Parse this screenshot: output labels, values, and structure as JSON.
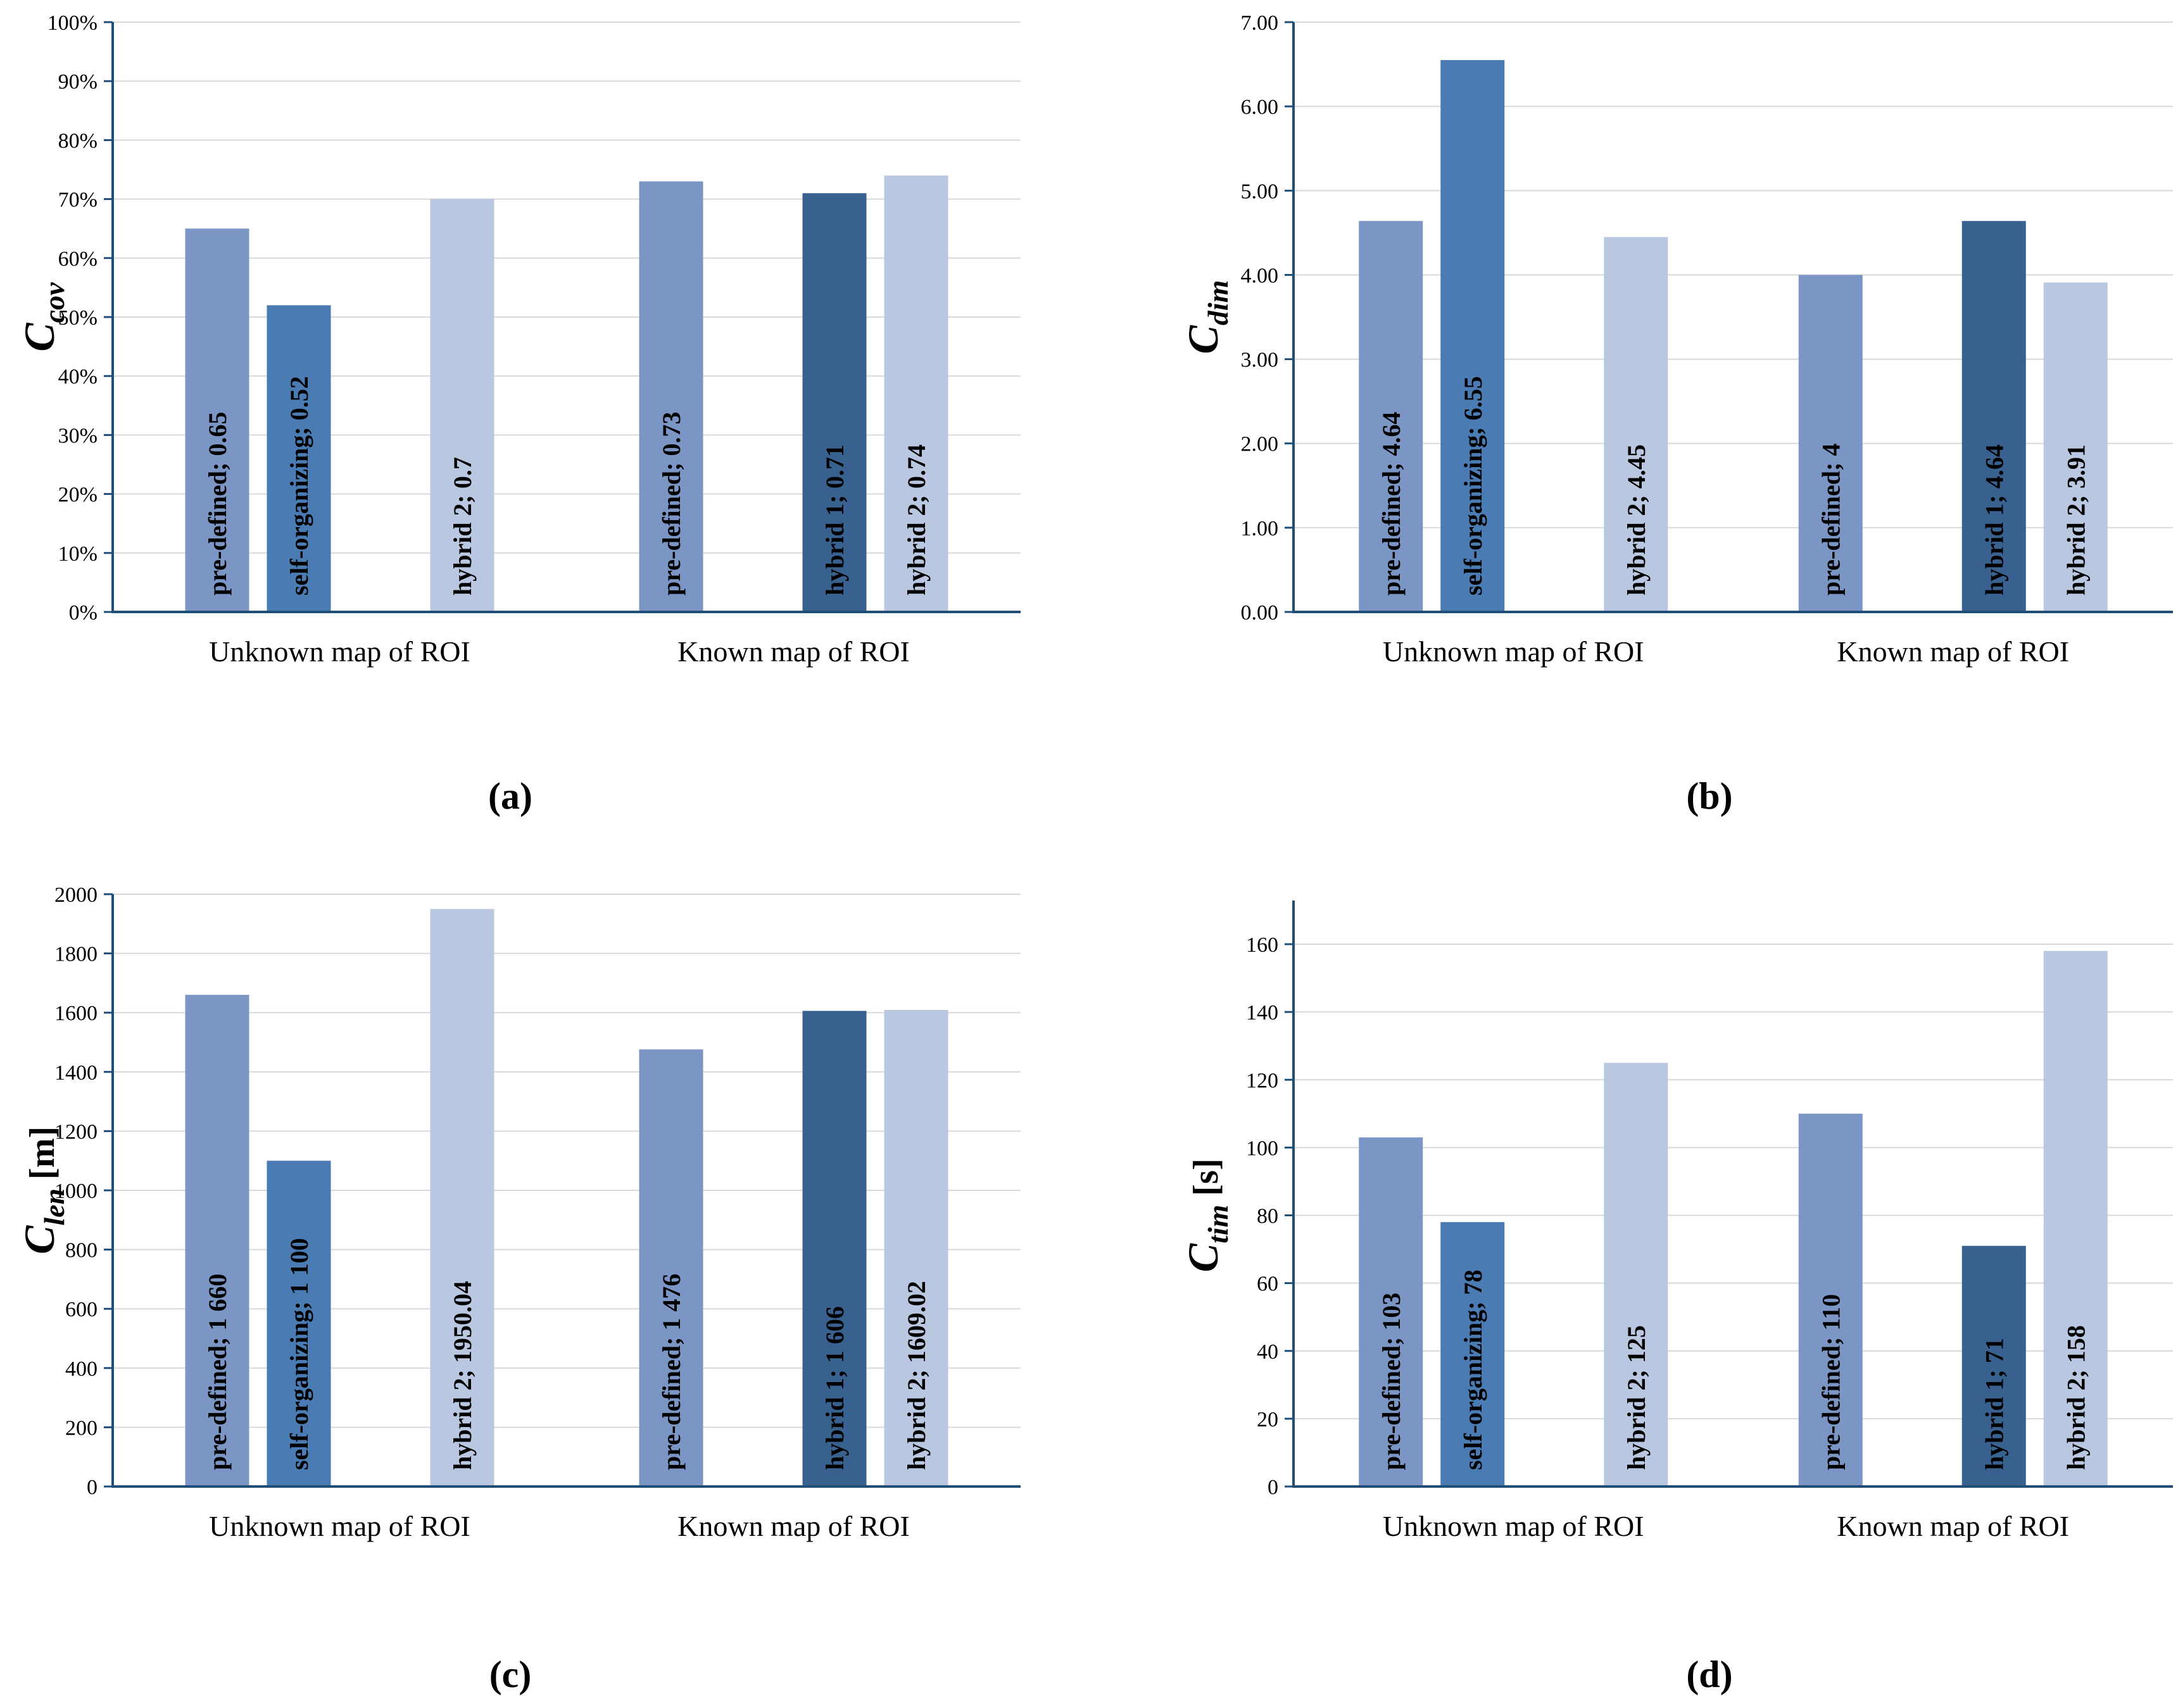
{
  "figure": {
    "background": "#ffffff",
    "axis_color": "#1F4E79",
    "gridline_color": "#D9D9D9",
    "text_color": "#000000",
    "series_colors": {
      "pre-defined": "#7B96C4",
      "self-organizing": "#4A7BB3",
      "hybrid 1": "#39618F",
      "hybrid 2": "#BAC7E0"
    }
  },
  "chart_data": [
    {
      "id": "a",
      "type": "bar",
      "caption": "(a)",
      "ylabel": {
        "symbol": "C",
        "subscript": "cov",
        "unit": ""
      },
      "y_axis": {
        "min": 0,
        "max": 1,
        "format": "percent",
        "grid": true,
        "legend": "none"
      },
      "ticks": [
        {
          "v": 0,
          "label": "0%"
        },
        {
          "v": 0.1,
          "label": "10%"
        },
        {
          "v": 0.2,
          "label": "20%"
        },
        {
          "v": 0.3,
          "label": "30%"
        },
        {
          "v": 0.4,
          "label": "40%"
        },
        {
          "v": 0.5,
          "label": "50%"
        },
        {
          "v": 0.6,
          "label": "60%"
        },
        {
          "v": 0.7,
          "label": "70%"
        },
        {
          "v": 0.8,
          "label": "80%"
        },
        {
          "v": 0.9,
          "label": "90%"
        },
        {
          "v": 1,
          "label": "100%"
        }
      ],
      "categories": [
        "Unknown map of ROI",
        "Known map of ROI"
      ],
      "series_order": [
        "pre-defined",
        "self-organizing",
        "hybrid 1",
        "hybrid 2"
      ],
      "groups": [
        {
          "category": "Unknown map of ROI",
          "bars": [
            {
              "series": "pre-defined",
              "value": 0.65,
              "label": "pre-defined; 0.65"
            },
            {
              "series": "self-organizing",
              "value": 0.52,
              "label": "self-organizing; 0.52"
            },
            null,
            {
              "series": "hybrid 2",
              "value": 0.7,
              "label": "hybrid 2; 0.7"
            }
          ]
        },
        {
          "category": "Known map of ROI",
          "bars": [
            {
              "series": "pre-defined",
              "value": 0.73,
              "label": "pre-defined; 0.73"
            },
            null,
            {
              "series": "hybrid 1",
              "value": 0.71,
              "label": "hybrid 1; 0.71"
            },
            {
              "series": "hybrid 2",
              "value": 0.74,
              "label": "hybrid 2; 0.74"
            }
          ]
        }
      ]
    },
    {
      "id": "b",
      "type": "bar",
      "caption": "(b)",
      "ylabel": {
        "symbol": "C",
        "subscript": "dim",
        "unit": ""
      },
      "y_axis": {
        "min": 0,
        "max": 7,
        "format": "2dp",
        "grid": true,
        "legend": "none"
      },
      "ticks": [
        {
          "v": 0,
          "label": "0.00"
        },
        {
          "v": 1,
          "label": "1.00"
        },
        {
          "v": 2,
          "label": "2.00"
        },
        {
          "v": 3,
          "label": "3.00"
        },
        {
          "v": 4,
          "label": "4.00"
        },
        {
          "v": 5,
          "label": "5.00"
        },
        {
          "v": 6,
          "label": "6.00"
        },
        {
          "v": 7,
          "label": "7.00"
        }
      ],
      "categories": [
        "Unknown map of ROI",
        "Known map of ROI"
      ],
      "series_order": [
        "pre-defined",
        "self-organizing",
        "hybrid 1",
        "hybrid 2"
      ],
      "groups": [
        {
          "category": "Unknown map of ROI",
          "bars": [
            {
              "series": "pre-defined",
              "value": 4.64,
              "label": "pre-defined; 4.64"
            },
            {
              "series": "self-organizing",
              "value": 6.55,
              "label": "self-organizing; 6.55"
            },
            null,
            {
              "series": "hybrid 2",
              "value": 4.45,
              "label": "hybrid 2; 4.45"
            }
          ]
        },
        {
          "category": "Known map of ROI",
          "bars": [
            {
              "series": "pre-defined",
              "value": 4,
              "label": "pre-defined; 4"
            },
            null,
            {
              "series": "hybrid 1",
              "value": 4.64,
              "label": "hybrid 1; 4.64"
            },
            {
              "series": "hybrid 2",
              "value": 3.91,
              "label": "hybrid 2; 3.91"
            }
          ]
        }
      ]
    },
    {
      "id": "c",
      "type": "bar",
      "caption": "(c)",
      "ylabel": {
        "symbol": "C",
        "subscript": "len",
        "unit": "[m]"
      },
      "y_axis": {
        "min": 0,
        "max": 2000,
        "format": "int",
        "grid": true,
        "legend": "none"
      },
      "ticks": [
        {
          "v": 0,
          "label": "0"
        },
        {
          "v": 200,
          "label": "200"
        },
        {
          "v": 400,
          "label": "400"
        },
        {
          "v": 600,
          "label": "600"
        },
        {
          "v": 800,
          "label": "800"
        },
        {
          "v": 1000,
          "label": "1000"
        },
        {
          "v": 1200,
          "label": "1200"
        },
        {
          "v": 1400,
          "label": "1400"
        },
        {
          "v": 1600,
          "label": "1600"
        },
        {
          "v": 1800,
          "label": "1800"
        },
        {
          "v": 2000,
          "label": "2000"
        }
      ],
      "categories": [
        "Unknown map of ROI",
        "Known map of ROI"
      ],
      "series_order": [
        "pre-defined",
        "self-organizing",
        "hybrid 1",
        "hybrid 2"
      ],
      "groups": [
        {
          "category": "Unknown map of ROI",
          "bars": [
            {
              "series": "pre-defined",
              "value": 1660,
              "label": "pre-defined; 1 660"
            },
            {
              "series": "self-organizing",
              "value": 1100,
              "label": "self-organizing; 1 100"
            },
            null,
            {
              "series": "hybrid 2",
              "value": 1950.04,
              "label": "hybrid 2; 1950.04"
            }
          ]
        },
        {
          "category": "Known map of ROI",
          "bars": [
            {
              "series": "pre-defined",
              "value": 1476,
              "label": "pre-defined; 1 476"
            },
            null,
            {
              "series": "hybrid 1",
              "value": 1606,
              "label": "hybrid 1; 1 606"
            },
            {
              "series": "hybrid 2",
              "value": 1609.02,
              "label": "hybrid 2; 1609.02"
            }
          ]
        }
      ]
    },
    {
      "id": "d",
      "type": "bar",
      "caption": "(d)",
      "ylabel": {
        "symbol": "C",
        "subscript": "tim",
        "unit": "[s]"
      },
      "y_axis": {
        "min": 0,
        "max": 160,
        "format": "int",
        "grid": true,
        "legend": "none",
        "axis_overhang": true
      },
      "ticks": [
        {
          "v": 0,
          "label": "0"
        },
        {
          "v": 20,
          "label": "20"
        },
        {
          "v": 40,
          "label": "40"
        },
        {
          "v": 60,
          "label": "60"
        },
        {
          "v": 80,
          "label": "80"
        },
        {
          "v": 100,
          "label": "100"
        },
        {
          "v": 120,
          "label": "120"
        },
        {
          "v": 140,
          "label": "140"
        },
        {
          "v": 160,
          "label": "160"
        }
      ],
      "categories": [
        "Unknown map of ROI",
        "Known map of ROI"
      ],
      "series_order": [
        "pre-defined",
        "self-organizing",
        "hybrid 1",
        "hybrid 2"
      ],
      "groups": [
        {
          "category": "Unknown map of ROI",
          "bars": [
            {
              "series": "pre-defined",
              "value": 103,
              "label": "pre-defined; 103"
            },
            {
              "series": "self-organizing",
              "value": 78,
              "label": "self-organizing; 78"
            },
            null,
            {
              "series": "hybrid 2",
              "value": 125,
              "label": "hybrid 2; 125"
            }
          ]
        },
        {
          "category": "Known map of ROI",
          "bars": [
            {
              "series": "pre-defined",
              "value": 110,
              "label": "pre-defined; 110"
            },
            null,
            {
              "series": "hybrid 1",
              "value": 71,
              "label": "hybrid 1; 71"
            },
            {
              "series": "hybrid 2",
              "value": 158,
              "label": "hybrid 2; 158"
            }
          ]
        }
      ]
    }
  ]
}
